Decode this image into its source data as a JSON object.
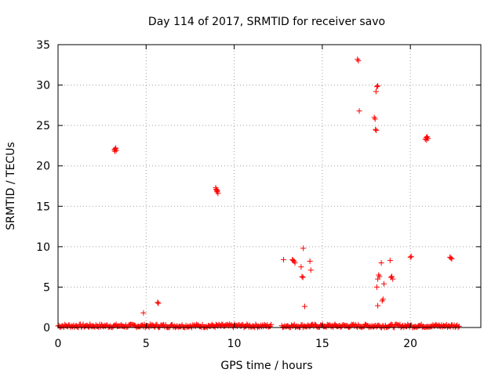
{
  "chart_data": {
    "type": "scatter",
    "title": "Day 114 of 2017, SRMTID for receiver savo",
    "xlabel": "GPS time / hours",
    "ylabel": "SRMTID / TECUs",
    "xlim": [
      0,
      24
    ],
    "ylim": [
      0,
      35
    ],
    "xticks": [
      0,
      5,
      10,
      15,
      20
    ],
    "yticks": [
      0,
      5,
      10,
      15,
      20,
      25,
      30,
      35
    ],
    "x_tick_labels": [
      "0",
      "5",
      "10",
      "15",
      "20"
    ],
    "y_tick_labels": [
      "0",
      "5",
      "10",
      "15",
      "20",
      "25",
      "30",
      "35"
    ],
    "grid": true,
    "grid_style": "dotted",
    "marker": "+",
    "colors": {
      "points": "#ff0000",
      "axes": "#000000",
      "grid": "#a0a0a0"
    },
    "series": [
      {
        "points": [
          [
            3.2,
            22.0
          ],
          [
            3.25,
            22.1
          ],
          [
            3.3,
            21.9
          ],
          [
            3.22,
            21.8
          ],
          [
            3.28,
            22.2
          ],
          [
            5.65,
            3.1
          ],
          [
            5.7,
            3.0
          ],
          [
            4.85,
            1.8
          ],
          [
            8.95,
            17.3
          ],
          [
            9.0,
            17.0
          ],
          [
            9.02,
            16.8
          ],
          [
            9.05,
            16.9
          ],
          [
            9.08,
            16.6
          ],
          [
            8.98,
            17.1
          ],
          [
            12.8,
            8.4
          ],
          [
            13.3,
            8.4
          ],
          [
            13.35,
            8.3
          ],
          [
            13.4,
            8.2
          ],
          [
            13.45,
            8.0
          ],
          [
            13.8,
            7.5
          ],
          [
            13.85,
            6.3
          ],
          [
            13.9,
            6.2
          ],
          [
            13.92,
            9.8
          ],
          [
            14.0,
            2.6
          ],
          [
            14.3,
            8.2
          ],
          [
            14.35,
            7.1
          ],
          [
            17.0,
            33.2
          ],
          [
            17.05,
            33.0
          ],
          [
            17.1,
            26.8
          ],
          [
            17.95,
            26.0
          ],
          [
            18.0,
            25.8
          ],
          [
            18.05,
            29.2
          ],
          [
            18.1,
            29.8
          ],
          [
            18.15,
            29.9
          ],
          [
            18.02,
            24.5
          ],
          [
            18.07,
            24.4
          ],
          [
            18.1,
            5.0
          ],
          [
            18.15,
            6.0
          ],
          [
            18.2,
            6.5
          ],
          [
            18.25,
            6.3
          ],
          [
            18.15,
            2.7
          ],
          [
            18.35,
            8.0
          ],
          [
            18.4,
            3.3
          ],
          [
            18.45,
            3.5
          ],
          [
            18.5,
            5.4
          ],
          [
            18.85,
            8.3
          ],
          [
            18.9,
            6.2
          ],
          [
            18.95,
            6.3
          ],
          [
            19.0,
            6.0
          ],
          [
            20.0,
            8.7
          ],
          [
            20.05,
            8.8
          ],
          [
            20.85,
            23.3
          ],
          [
            20.9,
            23.5
          ],
          [
            20.95,
            23.6
          ],
          [
            21.0,
            23.4
          ],
          [
            20.92,
            23.2
          ],
          [
            22.25,
            8.7
          ],
          [
            22.3,
            8.6
          ],
          [
            22.35,
            8.5
          ]
        ]
      }
    ],
    "baseline_segments": [
      [
        0.0,
        12.15
      ],
      [
        12.7,
        22.8
      ]
    ],
    "baseline_step": 0.055,
    "baseline_y_max": 0.4
  }
}
